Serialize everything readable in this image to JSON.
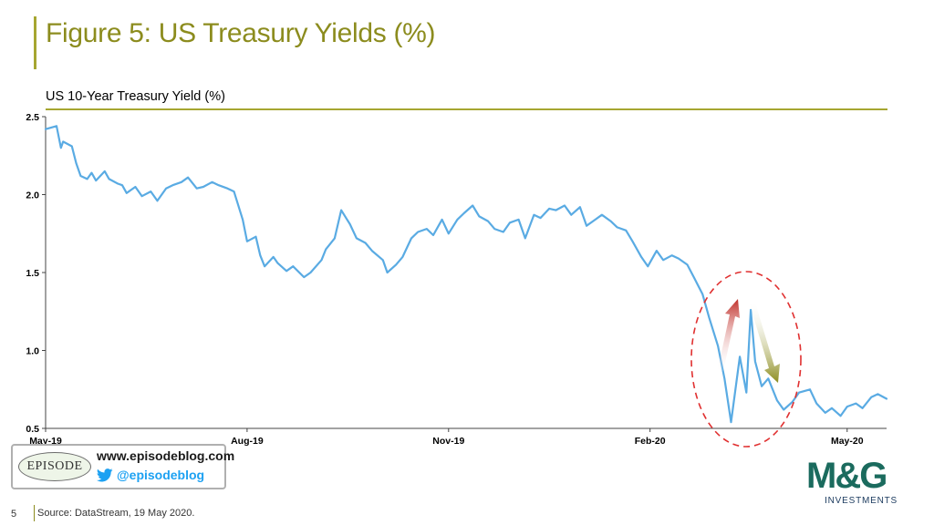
{
  "slide": {
    "title": "Figure 5: US Treasury Yields (%)",
    "page_number": "5",
    "source": "Source: DataStream, 19 May 2020."
  },
  "branding": {
    "episode_logo_text": "EPISODE",
    "blog_url": "www.episodeblog.com",
    "blog_handle": "@episodeblog",
    "twitter_icon": "twitter-bird-icon",
    "mg_logo_text": "M&G",
    "mg_logo_subtext": "INVESTMENTS",
    "brand_color": "#1b6b5e",
    "accent_color": "#a6a631"
  },
  "chart_data": {
    "type": "line",
    "title": "US 10-Year Treasury Yield (%)",
    "xlabel": "",
    "ylabel": "",
    "ylim": [
      0.5,
      2.5
    ],
    "yticks": [
      0.5,
      1.0,
      1.5,
      2.0,
      2.5
    ],
    "ytick_labels": [
      "0.5",
      "1.0",
      "1.5",
      "2.0",
      "2.5"
    ],
    "xtick_labels": [
      "May-19",
      "Aug-19",
      "Nov-19",
      "Feb-20",
      "May-20"
    ],
    "xtick_dates": [
      "2019-05-01",
      "2019-08-01",
      "2019-11-01",
      "2020-02-01",
      "2020-05-01"
    ],
    "x_range": [
      "2019-05-01",
      "2020-05-19"
    ],
    "grid": false,
    "legend": "none",
    "series_color": "#5aabe3",
    "series": [
      {
        "name": "",
        "x": [
          "2019-05-01",
          "2019-05-06",
          "2019-05-08",
          "2019-05-09",
          "2019-05-13",
          "2019-05-15",
          "2019-05-17",
          "2019-05-20",
          "2019-05-22",
          "2019-05-24",
          "2019-05-28",
          "2019-05-30",
          "2019-06-03",
          "2019-06-05",
          "2019-06-07",
          "2019-06-11",
          "2019-06-14",
          "2019-06-18",
          "2019-06-21",
          "2019-06-25",
          "2019-06-28",
          "2019-07-02",
          "2019-07-05",
          "2019-07-09",
          "2019-07-12",
          "2019-07-16",
          "2019-07-19",
          "2019-07-23",
          "2019-07-26",
          "2019-07-30",
          "2019-08-01",
          "2019-08-05",
          "2019-08-07",
          "2019-08-09",
          "2019-08-13",
          "2019-08-15",
          "2019-08-19",
          "2019-08-22",
          "2019-08-27",
          "2019-08-30",
          "2019-09-04",
          "2019-09-06",
          "2019-09-10",
          "2019-09-13",
          "2019-09-17",
          "2019-09-20",
          "2019-09-24",
          "2019-09-27",
          "2019-10-02",
          "2019-10-04",
          "2019-10-08",
          "2019-10-11",
          "2019-10-15",
          "2019-10-18",
          "2019-10-22",
          "2019-10-25",
          "2019-10-29",
          "2019-11-01",
          "2019-11-05",
          "2019-11-08",
          "2019-11-12",
          "2019-11-15",
          "2019-11-19",
          "2019-11-22",
          "2019-11-26",
          "2019-11-29",
          "2019-12-03",
          "2019-12-06",
          "2019-12-10",
          "2019-12-13",
          "2019-12-17",
          "2019-12-20",
          "2019-12-24",
          "2019-12-27",
          "2019-12-31",
          "2020-01-03",
          "2020-01-07",
          "2020-01-10",
          "2020-01-14",
          "2020-01-17",
          "2020-01-21",
          "2020-01-24",
          "2020-01-28",
          "2020-01-31",
          "2020-02-04",
          "2020-02-07",
          "2020-02-11",
          "2020-02-14",
          "2020-02-18",
          "2020-02-21",
          "2020-02-25",
          "2020-02-28",
          "2020-03-03",
          "2020-03-06",
          "2020-03-09",
          "2020-03-11",
          "2020-03-13",
          "2020-03-16",
          "2020-03-18",
          "2020-03-20",
          "2020-03-23",
          "2020-03-26",
          "2020-03-30",
          "2020-04-02",
          "2020-04-06",
          "2020-04-09",
          "2020-04-14",
          "2020-04-17",
          "2020-04-21",
          "2020-04-24",
          "2020-04-28",
          "2020-05-01",
          "2020-05-05",
          "2020-05-08",
          "2020-05-12",
          "2020-05-15",
          "2020-05-19"
        ],
        "values": [
          2.42,
          2.44,
          2.3,
          2.34,
          2.31,
          2.2,
          2.12,
          2.1,
          2.14,
          2.09,
          2.15,
          2.1,
          2.07,
          2.06,
          2.01,
          2.05,
          1.99,
          2.02,
          1.96,
          2.04,
          2.06,
          2.08,
          2.11,
          2.04,
          2.05,
          2.08,
          2.06,
          2.04,
          2.02,
          1.84,
          1.7,
          1.73,
          1.61,
          1.54,
          1.6,
          1.56,
          1.51,
          1.54,
          1.47,
          1.5,
          1.58,
          1.65,
          1.72,
          1.9,
          1.81,
          1.72,
          1.69,
          1.64,
          1.58,
          1.5,
          1.55,
          1.6,
          1.72,
          1.76,
          1.78,
          1.74,
          1.84,
          1.75,
          1.84,
          1.88,
          1.93,
          1.86,
          1.83,
          1.78,
          1.76,
          1.82,
          1.84,
          1.72,
          1.87,
          1.85,
          1.91,
          1.9,
          1.93,
          1.87,
          1.92,
          1.8,
          1.84,
          1.87,
          1.83,
          1.79,
          1.77,
          1.7,
          1.6,
          1.54,
          1.64,
          1.58,
          1.61,
          1.59,
          1.55,
          1.47,
          1.36,
          1.21,
          1.03,
          0.82,
          0.54,
          0.75,
          0.96,
          0.73,
          1.26,
          0.93,
          0.77,
          0.82,
          0.68,
          0.62,
          0.67,
          0.73,
          0.75,
          0.66,
          0.6,
          0.63,
          0.58,
          0.64,
          0.66,
          0.63,
          0.7,
          0.72,
          0.69
        ]
      }
    ],
    "annotations": {
      "highlight_ellipse_color": "#e03030",
      "up_arrow_color": "#c0302a",
      "down_arrow_color": "#8c8c1e"
    }
  }
}
